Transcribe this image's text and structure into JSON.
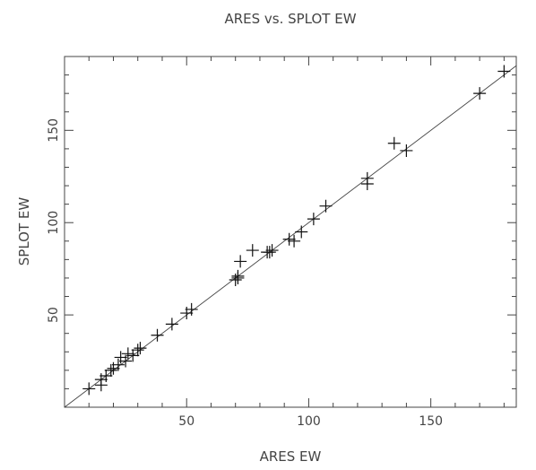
{
  "chart_data": {
    "type": "scatter",
    "title": "ARES vs. SPLOT EW",
    "xlabel": "ARES EW",
    "ylabel": "SPLOT EW",
    "xlim": [
      0,
      185
    ],
    "ylim": [
      0,
      190
    ],
    "xticks_labeled": [
      50,
      100,
      150
    ],
    "yticks_labeled": [
      50,
      100,
      150
    ],
    "minor_tick_step": 10,
    "grid": false,
    "marker": "plus",
    "reference_line": {
      "type": "y=x",
      "from": 0,
      "to": 185
    },
    "points": [
      [
        10,
        10
      ],
      [
        15,
        12
      ],
      [
        15,
        15
      ],
      [
        17,
        17
      ],
      [
        19,
        20
      ],
      [
        20,
        21
      ],
      [
        22,
        23
      ],
      [
        23,
        27
      ],
      [
        25,
        25
      ],
      [
        26,
        29
      ],
      [
        28,
        28
      ],
      [
        30,
        31
      ],
      [
        31,
        32
      ],
      [
        38,
        39
      ],
      [
        44,
        45
      ],
      [
        50,
        51
      ],
      [
        52,
        53
      ],
      [
        70,
        69
      ],
      [
        71,
        70
      ],
      [
        71,
        71
      ],
      [
        72,
        79
      ],
      [
        77,
        85
      ],
      [
        83,
        84
      ],
      [
        84,
        84
      ],
      [
        85,
        85
      ],
      [
        92,
        91
      ],
      [
        94,
        90
      ],
      [
        97,
        95
      ],
      [
        102,
        102
      ],
      [
        107,
        109
      ],
      [
        124,
        124
      ],
      [
        124,
        121
      ],
      [
        135,
        143
      ],
      [
        140,
        139
      ],
      [
        170,
        170
      ],
      [
        180,
        182
      ]
    ]
  }
}
